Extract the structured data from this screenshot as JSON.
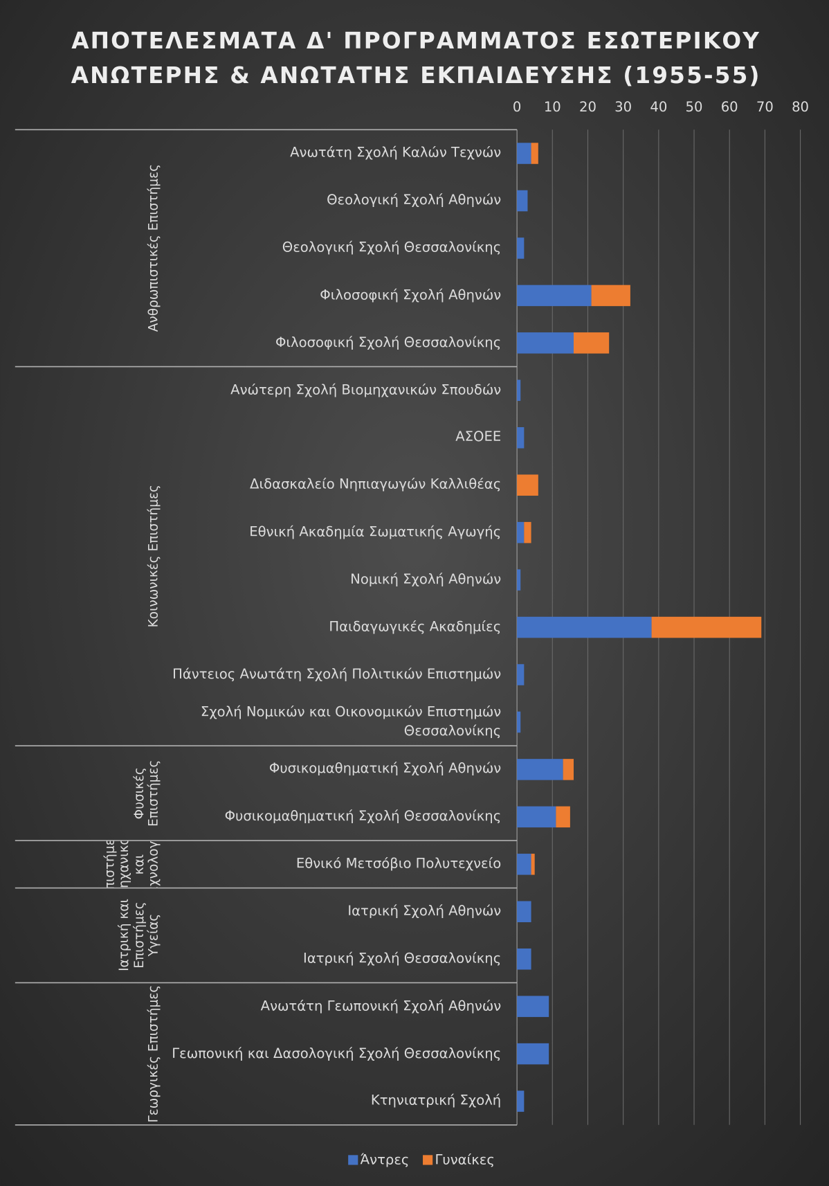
{
  "chart_data": {
    "type": "stacked_barh",
    "title": [
      "ΑΠΟΤΕΛΕΣΜΑΤΑ Δ' ΠΡΟΓΡΑΜΜΑΤΟΣ ΕΣΩΤΕΡΙΚΟΥ",
      "ΑΝΩΤΕΡΗΣ & ΑΝΩΤΑΤΗΣ ΕΚΠΑΙΔΕΥΣΗΣ (1955-55)"
    ],
    "groups": [
      {
        "name": "Ανθρωπιστικές Επιστήμες",
        "categories": [
          "Ανωτάτη Σχολή Καλών Τεχνών",
          "Θεολογική Σχολή Αθηνών",
          "Θεολογική Σχολή Θεσσαλονίκης",
          "Φιλοσοφική Σχολή Αθηνών",
          "Φιλοσοφική Σχολή Θεσσαλονίκης"
        ]
      },
      {
        "name": "Κοινωνικές Επιστήμες",
        "categories": [
          "Ανώτερη Σχολή Βιομηχανικών Σπουδών",
          "ΑΣΟΕΕ",
          "Διδασκαλείο Νηπιαγωγών Καλλιθέας",
          "Εθνική Ακαδημία Σωματικής Αγωγής",
          "Νομική Σχολή Αθηνών",
          "Παιδαγωγικές Ακαδημίες",
          "Πάντειος Ανωτάτη Σχολή Πολιτικών Επιστημών",
          "Σχολή Νομικών και Οικονομικών Επιστημών Θεσσαλονίκης"
        ]
      },
      {
        "name": "Φυσικές Επιστήμες",
        "categories": [
          "Φυσικομαθηματική Σχολή Αθηνών",
          "Φυσικομαθηματική Σχολή Θεσσαλονίκης"
        ]
      },
      {
        "name": "Επιστήμες Μηχανικού και Τεχνολογία",
        "categories": [
          "Εθνικό Μετσόβιο Πολυτεχνείο"
        ]
      },
      {
        "name": "Ιατρική και Επιστήμες Υγείας",
        "categories": [
          "Ιατρική Σχολή Αθηνών",
          "Ιατρική Σχολή Θεσσαλονίκης"
        ]
      },
      {
        "name": "Γεωργικές Επιστήμες",
        "categories": [
          "Ανωτάτη Γεωπονική Σχολή Αθηνών",
          "Γεωπονική και Δασολογική Σχολή Θεσσαλονίκης",
          "Κτηνιατρική Σχολή"
        ]
      }
    ],
    "series": [
      {
        "name": "Άντρες",
        "color": "#4472c4",
        "values": [
          4,
          3,
          2,
          21,
          16,
          1,
          2,
          0,
          2,
          1,
          38,
          2,
          1,
          13,
          11,
          4,
          4,
          4,
          9,
          9,
          2
        ]
      },
      {
        "name": "Γυναίκες",
        "color": "#ed7d31",
        "values": [
          2,
          0,
          0,
          11,
          10,
          0,
          0,
          6,
          2,
          0,
          31,
          0,
          0,
          3,
          4,
          1,
          0,
          0,
          0,
          0,
          0
        ]
      }
    ],
    "xlim": [
      0,
      80
    ],
    "xticks": [
      0,
      10,
      20,
      30,
      40,
      50,
      60,
      70,
      80
    ],
    "grid": true,
    "legend": "bottom"
  }
}
